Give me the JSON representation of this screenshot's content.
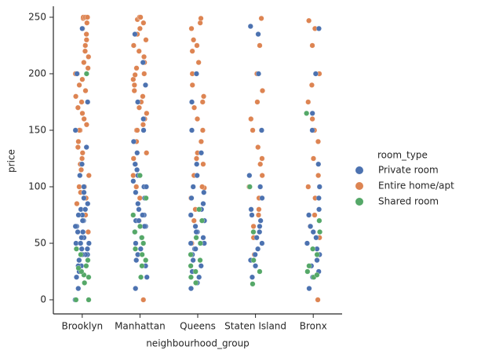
{
  "chart_data": {
    "type": "strip",
    "x_label": "neighbourhood_group",
    "y_label": "price",
    "legend_title": "room_type",
    "legend": "right",
    "categories": [
      "Brooklyn",
      "Manhattan",
      "Queens",
      "Staten Island",
      "Bronx"
    ],
    "ylim": [
      -12.5,
      259.7
    ],
    "yticks": [
      0,
      50,
      100,
      150,
      200,
      250
    ],
    "series": [
      {
        "name": "Private room",
        "color": "#4c72b0",
        "values": [
          [
            0,
            10,
            20,
            25,
            30,
            30,
            35,
            35,
            40,
            40,
            40,
            45,
            45,
            50,
            50,
            50,
            55,
            55,
            60,
            60,
            60,
            65,
            65,
            70,
            70,
            75,
            75,
            80,
            80,
            85,
            90,
            95,
            100,
            110,
            120,
            135,
            150,
            175,
            200,
            240
          ],
          [
            10,
            20,
            30,
            35,
            40,
            45,
            50,
            55,
            60,
            60,
            65,
            65,
            70,
            70,
            75,
            75,
            80,
            85,
            90,
            95,
            100,
            100,
            105,
            110,
            115,
            120,
            130,
            140,
            150,
            160,
            175,
            190,
            210,
            235
          ],
          [
            10,
            15,
            20,
            25,
            30,
            35,
            40,
            45,
            45,
            50,
            50,
            55,
            60,
            60,
            65,
            70,
            70,
            75,
            80,
            85,
            90,
            95,
            100,
            110,
            120,
            130,
            150,
            175,
            200
          ],
          [
            20,
            30,
            35,
            40,
            45,
            50,
            55,
            60,
            65,
            70,
            75,
            80,
            90,
            100,
            110,
            150,
            200,
            235,
            242
          ],
          [
            10,
            20,
            25,
            30,
            35,
            40,
            45,
            50,
            55,
            60,
            65,
            70,
            75,
            80,
            90,
            100,
            120,
            150,
            165,
            200,
            240
          ]
        ]
      },
      {
        "name": "Entire home/apt",
        "color": "#dd8452",
        "values": [
          [
            60,
            75,
            85,
            90,
            95,
            100,
            100,
            110,
            115,
            120,
            125,
            130,
            135,
            140,
            150,
            150,
            155,
            160,
            165,
            170,
            175,
            180,
            185,
            190,
            195,
            200,
            200,
            205,
            210,
            215,
            220,
            225,
            230,
            235,
            240,
            245,
            249,
            250,
            250,
            250
          ],
          [
            0,
            70,
            90,
            100,
            110,
            120,
            125,
            130,
            140,
            150,
            150,
            155,
            160,
            165,
            170,
            175,
            180,
            185,
            190,
            195,
            199,
            200,
            205,
            210,
            215,
            220,
            225,
            230,
            235,
            240,
            245,
            248,
            250,
            250,
            250
          ],
          [
            50,
            70,
            80,
            90,
            99,
            100,
            110,
            120,
            125,
            130,
            140,
            150,
            160,
            170,
            175,
            180,
            190,
            200,
            210,
            220,
            225,
            230,
            240,
            245,
            249
          ],
          [
            40,
            55,
            65,
            75,
            80,
            90,
            100,
            110,
            120,
            125,
            135,
            150,
            160,
            175,
            185,
            200,
            225,
            249
          ],
          [
            0,
            55,
            65,
            75,
            90,
            100,
            110,
            125,
            140,
            150,
            160,
            175,
            190,
            200,
            225,
            240,
            247
          ]
        ]
      },
      {
        "name": "Shared room",
        "color": "#55a868",
        "values": [
          [
            0,
            0,
            15,
            20,
            22,
            25,
            28,
            30,
            35,
            40,
            45,
            200
          ],
          [
            20,
            30,
            35,
            40,
            45,
            50,
            55,
            60,
            65,
            75,
            90,
            110
          ],
          [
            15,
            20,
            25,
            30,
            35,
            40,
            50,
            55,
            70,
            80
          ],
          [
            14,
            25,
            35,
            60,
            100
          ],
          [
            20,
            22,
            25,
            30,
            40,
            45,
            60,
            70,
            165
          ]
        ]
      }
    ]
  }
}
